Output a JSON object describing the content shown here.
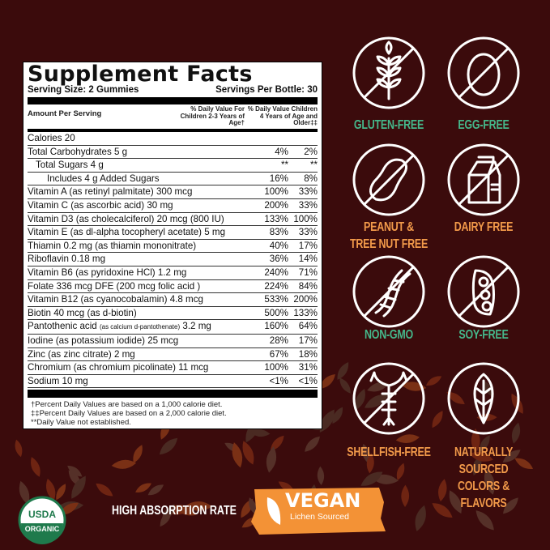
{
  "facts": {
    "title": "Supplement Facts",
    "serving_size": "Serving Size: 2 Gummies",
    "servings_per": "Servings Per Bottle: 30",
    "col_amount": "Amount Per Serving",
    "col_dv1": "% Daily Value For Children 2-3 Years of Age†",
    "col_dv2": "% Daily Value Children 4 Years of Age and Older‡‡",
    "rows": [
      {
        "name": "Calories 20",
        "dv1": "",
        "dv2": ""
      },
      {
        "name": "Total Carbohydrates 5 g",
        "dv1": "4%",
        "dv2": "2%"
      },
      {
        "name": "Total Sugars 4 g",
        "dv1": "**",
        "dv2": "**"
      },
      {
        "name": "Includes 4 g Added Sugars",
        "dv1": "16%",
        "dv2": "8%"
      },
      {
        "name": "Vitamin A (as retinyl palmitate) 300 mcg",
        "dv1": "100%",
        "dv2": "33%"
      },
      {
        "name": "Vitamin C (as ascorbic acid) 30 mg",
        "dv1": "200%",
        "dv2": "33%"
      },
      {
        "name": "Vitamin D3 (as cholecalciferol) 20 mcg (800 IU)",
        "dv1": "133%",
        "dv2": "100%"
      },
      {
        "name": "Vitamin E (as dl-alpha tocopheryl acetate) 5 mg",
        "dv1": "83%",
        "dv2": "33%"
      },
      {
        "name": "Thiamin 0.2 mg (as thiamin mononitrate)",
        "dv1": "40%",
        "dv2": "17%"
      },
      {
        "name": "Riboflavin 0.18 mg",
        "dv1": "36%",
        "dv2": "14%"
      },
      {
        "name": "Vitamin B6 (as pyridoxine HCl) 1.2 mg",
        "dv1": "240%",
        "dv2": "71%"
      },
      {
        "name": "Folate 336 mcg DFE (200 mcg folic acid )",
        "dv1": "224%",
        "dv2": "84%"
      },
      {
        "name": "Vitamin B12 (as cyanocobalamin) 4.8 mcg",
        "dv1": "533%",
        "dv2": "200%"
      },
      {
        "name": "Biotin 40 mcg (as d-biotin)",
        "dv1": "500%",
        "dv2": "133%"
      },
      {
        "name": "Pantothenic acid",
        "name_small": "(as calcium d-pantothenate)",
        "name_tail": "3.2 mg",
        "dv1": "160%",
        "dv2": "64%"
      },
      {
        "name": "Iodine (as potassium iodide) 25 mcg",
        "dv1": "28%",
        "dv2": "17%"
      },
      {
        "name": "Zinc (as zinc citrate) 2 mg",
        "dv1": "67%",
        "dv2": "18%"
      },
      {
        "name": "Chromium (as chromium picolinate) 11 mcg",
        "dv1": "100%",
        "dv2": "31%"
      },
      {
        "name": "Sodium 10 mg",
        "dv1": "<1%",
        "dv2": "<1%"
      }
    ],
    "footnotes": [
      "†Percent Daily Values are based on a 1,000 calorie diet.",
      "‡‡Percent Daily Values are based on a 2,000 calorie diet.",
      "**Daily Value not established."
    ]
  },
  "badges": [
    {
      "label": "GLUTEN-FREE",
      "icon": "wheat-icon",
      "color": "#45b88b"
    },
    {
      "label": "EGG-FREE",
      "icon": "egg-icon",
      "color": "#45b88b"
    },
    {
      "label": "PEANUT & TREE NUT FREE",
      "line1": "PEANUT &",
      "line2": "TREE NUT FREE",
      "icon": "peanut-icon",
      "color": "#f29a4a"
    },
    {
      "label": "DAIRY FREE",
      "icon": "milk-carton-icon",
      "color": "#f29a4a"
    },
    {
      "label": "NON-GMO",
      "icon": "dna-icon",
      "color": "#45b88b"
    },
    {
      "label": "SOY-FREE",
      "icon": "soybean-icon",
      "color": "#45b88b"
    },
    {
      "label": "SHELLFISH-FREE",
      "icon": "lobster-icon",
      "color": "#f29a4a"
    },
    {
      "label": "NATURALLY SOURCED COLORS & FLAVORS",
      "lines": [
        "NATURALLY",
        "SOURCED",
        "COLORS &",
        "FLAVORS"
      ],
      "icon": "leaf-icon",
      "color": "#f29a4a"
    }
  ],
  "bottom": {
    "usda_logo": "USDA ORGANIC",
    "absorption": "HIGH ABSORPTION RATE",
    "vegan": "VEGAN",
    "vegan_sub": "Lichen Sourced"
  },
  "colors": {
    "background": "#3b0b0c",
    "green": "#45b88b",
    "orange": "#f29a4a",
    "vegan_badge": "#f39236"
  }
}
